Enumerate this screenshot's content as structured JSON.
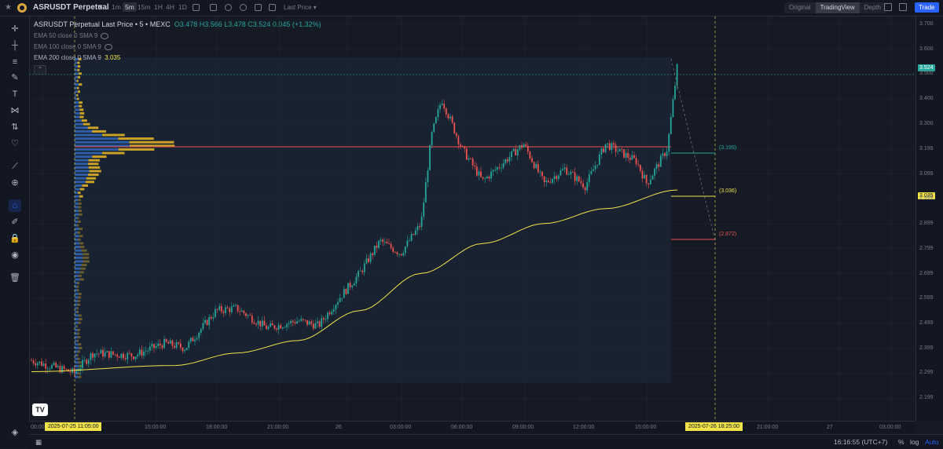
{
  "header": {
    "symbol": "ASRUSDT Perpetual",
    "timeframes": [
      "1m",
      "5m",
      "15m",
      "1H",
      "4H",
      "1D"
    ],
    "active_timeframe": "5m",
    "price_type": "Last Price",
    "views": [
      "Original",
      "TradingView",
      "Depth"
    ],
    "active_view": "TradingView",
    "trade_label": "Trade"
  },
  "legend": {
    "title": "ASRUSDT Perpetual Last Price • 5 • MEXC",
    "ohlc": "O3.478 H3.566 L3.478 C3.524 0.045 (+1.32%)",
    "ema50": "EMA 50 close 0 SMA 9",
    "ema100": "EMA 100 close 0 SMA 9",
    "ema200": "EMA 200 close 0 SMA 9",
    "ema200_value": "3.035"
  },
  "price_axis": {
    "ticks": [
      "3.700",
      "3.600",
      "3.500",
      "3.400",
      "3.300",
      "3.199",
      "3.099",
      "2.999",
      "2.899",
      "2.799",
      "2.699",
      "2.599",
      "2.499",
      "2.399",
      "2.299",
      "2.199"
    ],
    "current_price": "3.524",
    "ema_price": "3.035"
  },
  "time_axis": {
    "ticks": [
      "00:00",
      "15:00:00",
      "18:00:00",
      "21:00:00",
      "26",
      "03:00:00",
      "06:00:00",
      "09:00:00",
      "12:00:00",
      "15:00:00",
      "21:00:00",
      "27",
      "03:00:00"
    ],
    "badge_start": "2025-07-25   11:05:00",
    "badge_end": "2025-07-26   18:25:00"
  },
  "annotations": {
    "upper": "(3.199)",
    "mid": "(3.036)",
    "lower": "(2.872)"
  },
  "bottom": {
    "clock": "16:16:55 (UTC+7)",
    "percent": "%",
    "log": "log",
    "auto": "Auto"
  },
  "colors": {
    "up": "#26a69a",
    "down": "#ef5350",
    "ema": "#f0e34a",
    "vp_blue": "#2f5ea8",
    "vp_gold": "#c9a227",
    "accent": "#2962ff"
  },
  "chart_data": {
    "type": "candlestick",
    "symbol": "ASRUSDT",
    "interval": "5m",
    "ylim": [
      2.18,
      3.72
    ],
    "close_path": [
      {
        "t": "2025-07-25 09:00",
        "p": 2.35
      },
      {
        "t": "2025-07-25 11:05",
        "p": 2.3
      },
      {
        "t": "2025-07-25 12:00",
        "p": 2.38
      },
      {
        "t": "2025-07-25 14:00",
        "p": 2.37
      },
      {
        "t": "2025-07-25 15:30",
        "p": 2.42
      },
      {
        "t": "2025-07-25 16:30",
        "p": 2.4
      },
      {
        "t": "2025-07-25 18:00",
        "p": 2.55
      },
      {
        "t": "2025-07-25 19:00",
        "p": 2.56
      },
      {
        "t": "2025-07-25 20:30",
        "p": 2.48
      },
      {
        "t": "2025-07-25 22:00",
        "p": 2.51
      },
      {
        "t": "2025-07-25 23:00",
        "p": 2.49
      },
      {
        "t": "2025-07-26 00:00",
        "p": 2.6
      },
      {
        "t": "2025-07-26 01:00",
        "p": 2.7
      },
      {
        "t": "2025-07-26 02:00",
        "p": 2.83
      },
      {
        "t": "2025-07-26 03:00",
        "p": 2.78
      },
      {
        "t": "2025-07-26 04:00",
        "p": 2.9
      },
      {
        "t": "2025-07-26 04:30",
        "p": 3.25
      },
      {
        "t": "2025-07-26 05:00",
        "p": 3.4
      },
      {
        "t": "2025-07-26 06:00",
        "p": 3.2
      },
      {
        "t": "2025-07-26 07:00",
        "p": 3.07
      },
      {
        "t": "2025-07-26 09:00",
        "p": 3.22
      },
      {
        "t": "2025-07-26 10:00",
        "p": 3.06
      },
      {
        "t": "2025-07-26 11:00",
        "p": 3.12
      },
      {
        "t": "2025-07-26 12:00",
        "p": 3.05
      },
      {
        "t": "2025-07-26 13:00",
        "p": 3.22
      },
      {
        "t": "2025-07-26 14:30",
        "p": 3.15
      },
      {
        "t": "2025-07-26 15:00",
        "p": 3.06
      },
      {
        "t": "2025-07-26 16:00",
        "p": 3.2
      },
      {
        "t": "2025-07-26 16:30",
        "p": 3.54
      }
    ],
    "ema200_path": [
      {
        "t": "2025-07-25 09:00",
        "p": 2.305
      },
      {
        "t": "2025-07-25 16:00",
        "p": 2.33
      },
      {
        "t": "2025-07-25 19:00",
        "p": 2.38
      },
      {
        "t": "2025-07-25 22:00",
        "p": 2.43
      },
      {
        "t": "2025-07-26 01:00",
        "p": 2.55
      },
      {
        "t": "2025-07-26 04:00",
        "p": 2.7
      },
      {
        "t": "2025-07-26 07:00",
        "p": 2.82
      },
      {
        "t": "2025-07-26 10:00",
        "p": 2.9
      },
      {
        "t": "2025-07-26 13:00",
        "p": 2.96
      },
      {
        "t": "2025-07-26 16:30",
        "p": 3.035
      }
    ],
    "poc_price": 3.22,
    "levels": [
      3.199,
      3.036,
      2.872
    ],
    "last_close": 3.524
  }
}
